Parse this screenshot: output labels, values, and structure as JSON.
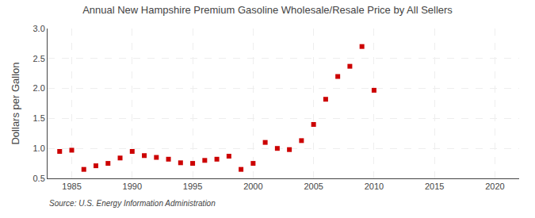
{
  "chart_data": {
    "type": "scatter",
    "title": "Annual New Hampshire Premium Gasoline Wholesale/Resale Price by All Sellers",
    "ylabel": "Dollars per Gallon",
    "annotations": [
      "Source: U.S. Energy Information Administration"
    ],
    "x": [
      1984,
      1985,
      1986,
      1987,
      1988,
      1989,
      1990,
      1991,
      1992,
      1993,
      1994,
      1995,
      1996,
      1997,
      1998,
      1999,
      2000,
      2001,
      2002,
      2003,
      2004,
      2005,
      2006,
      2007,
      2008,
      2009,
      2010
    ],
    "values": [
      0.95,
      0.97,
      0.65,
      0.71,
      0.75,
      0.84,
      0.95,
      0.88,
      0.85,
      0.82,
      0.76,
      0.75,
      0.8,
      0.82,
      0.87,
      0.65,
      0.75,
      1.1,
      1.0,
      0.98,
      1.13,
      1.4,
      1.82,
      2.2,
      2.37,
      2.7,
      1.97
    ],
    "color": "#cc0000",
    "marker": "square",
    "xlim": [
      1983,
      2022
    ],
    "ylim": [
      0.5,
      3.0
    ],
    "xticks": [
      1985,
      1990,
      1995,
      2000,
      2005,
      2010,
      2015,
      2020
    ],
    "yticks": [
      0.5,
      {
        "value": 1.0,
        "label": "1.0"
      },
      1.5,
      {
        "value": 2.0,
        "label": "2.0"
      },
      2.5,
      {
        "value": 3.0,
        "label": "3.0"
      }
    ],
    "grid": true
  }
}
